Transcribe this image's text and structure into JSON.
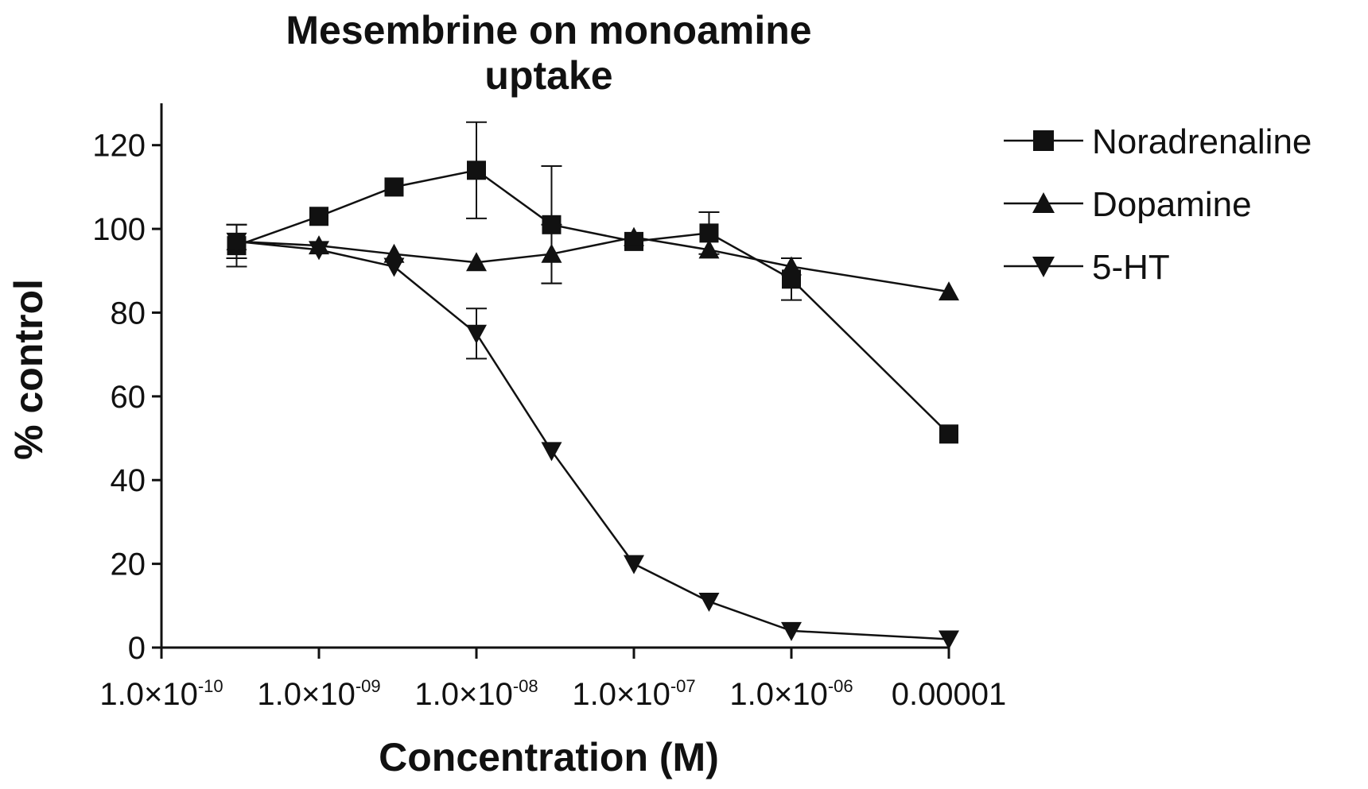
{
  "chart_data": {
    "type": "line",
    "title_lines": [
      "Mesembrine on monoamine",
      "uptake"
    ],
    "xlabel": "Concentration (M)",
    "ylabel": "% control",
    "x_scale": "log",
    "xlim": [
      1e-10,
      1e-05
    ],
    "ylim": [
      0,
      130
    ],
    "x_ticks": [
      {
        "value": 1e-10,
        "base": "1.0×10",
        "exp": "-10"
      },
      {
        "value": 1e-09,
        "base": "1.0×10",
        "exp": "-09"
      },
      {
        "value": 1e-08,
        "base": "1.0×10",
        "exp": "-08"
      },
      {
        "value": 1e-07,
        "base": "1.0×10",
        "exp": "-07"
      },
      {
        "value": 1e-06,
        "base": "1.0×10",
        "exp": "-06"
      },
      {
        "value": 1e-05,
        "base": "0.00001",
        "exp": ""
      }
    ],
    "y_ticks": [
      0,
      20,
      40,
      60,
      80,
      100,
      120
    ],
    "grid": false,
    "legend_position": "top-right",
    "series": [
      {
        "name": "Noradrenaline",
        "marker": "square",
        "x": [
          3e-10,
          1e-09,
          3e-09,
          1e-08,
          3e-08,
          1e-07,
          3e-07,
          1e-06,
          1e-05
        ],
        "y": [
          96,
          103,
          110,
          114,
          101,
          97,
          99,
          88,
          51
        ],
        "err": [
          5,
          0,
          0,
          11.5,
          14,
          0,
          5,
          5,
          0
        ]
      },
      {
        "name": "Dopamine",
        "marker": "triangle-up",
        "x": [
          3e-10,
          1e-09,
          3e-09,
          1e-08,
          3e-08,
          1e-07,
          3e-07,
          1e-06,
          1e-05
        ],
        "y": [
          97,
          96,
          94,
          92,
          94,
          98,
          95,
          91,
          85
        ],
        "err": [
          4,
          0,
          0,
          0,
          7,
          0,
          0,
          0,
          0
        ]
      },
      {
        "name": "5-HT",
        "marker": "triangle-down",
        "x": [
          3e-10,
          1e-09,
          3e-09,
          1e-08,
          3e-08,
          1e-07,
          3e-07,
          1e-06,
          1e-05
        ],
        "y": [
          97,
          95,
          91,
          75,
          47,
          20,
          11,
          4,
          2
        ],
        "err": [
          0,
          0,
          0,
          6,
          0,
          0,
          0,
          0,
          0
        ]
      }
    ],
    "colors": {
      "line": "#111111",
      "marker": "#111111",
      "background": "#ffffff"
    }
  }
}
